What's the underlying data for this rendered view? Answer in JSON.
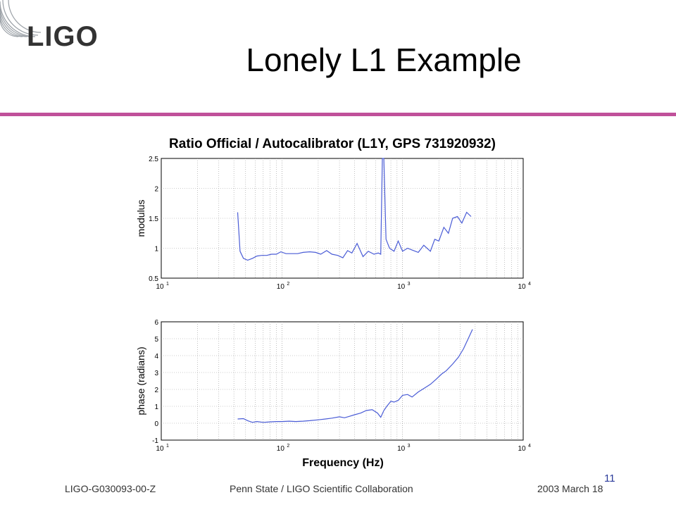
{
  "logo": {
    "text": "LIGO"
  },
  "slide": {
    "title": "Lonely L1 Example",
    "page_number": "11"
  },
  "footer": {
    "left": "LIGO-G030093-00-Z",
    "center": "Penn State / LIGO Scientific Collaboration",
    "right": "2003 March 18"
  },
  "colors": {
    "accent_line": "#c0509a",
    "series": "#4a5cd6",
    "page_number": "#2a3a9a"
  },
  "chart_data": [
    {
      "type": "line",
      "title": "Ratio Official / Autocalibrator (L1Y, GPS 731920932)",
      "xlabel": "",
      "ylabel": "modulus",
      "xscale": "log",
      "xlim": [
        10,
        10000
      ],
      "ylim": [
        0.5,
        2.5
      ],
      "xticks": [
        "10",
        "10",
        "10",
        "10"
      ],
      "xtick_exps": [
        "1",
        "2",
        "3",
        "4"
      ],
      "yticks": [
        "0.5",
        "1",
        "1.5",
        "2",
        "2.5"
      ],
      "grid": true,
      "series": [
        {
          "x": [
            43,
            45,
            48,
            52,
            57,
            62,
            68,
            75,
            82,
            90,
            98,
            108,
            120,
            135,
            150,
            170,
            190,
            210,
            235,
            260,
            290,
            320,
            350,
            380,
            420,
            470,
            520,
            580,
            630,
            660,
            680,
            700,
            730,
            780,
            850,
            920,
            1000,
            1100,
            1200,
            1350,
            1500,
            1700,
            1850,
            2000,
            2200,
            2400,
            2600,
            2850,
            3100,
            3400,
            3700
          ],
          "y": [
            1.6,
            0.95,
            0.83,
            0.8,
            0.83,
            0.87,
            0.88,
            0.88,
            0.9,
            0.9,
            0.94,
            0.91,
            0.91,
            0.91,
            0.93,
            0.94,
            0.93,
            0.9,
            0.96,
            0.9,
            0.88,
            0.84,
            0.96,
            0.92,
            1.08,
            0.86,
            0.95,
            0.9,
            0.92,
            0.9,
            2.5,
            2.5,
            1.15,
            1.0,
            0.95,
            1.12,
            0.95,
            1.0,
            0.97,
            0.93,
            1.05,
            0.95,
            1.15,
            1.12,
            1.35,
            1.25,
            1.5,
            1.53,
            1.42,
            1.6,
            1.53
          ]
        }
      ]
    },
    {
      "type": "line",
      "title": "",
      "xlabel": "Frequency (Hz)",
      "ylabel": "phase (radians)",
      "xscale": "log",
      "xlim": [
        10,
        10000
      ],
      "ylim": [
        -1,
        6
      ],
      "xticks": [
        "10",
        "10",
        "10",
        "10"
      ],
      "xtick_exps": [
        "1",
        "2",
        "3",
        "4"
      ],
      "yticks": [
        "-1",
        "0",
        "1",
        "2",
        "3",
        "4",
        "5",
        "6"
      ],
      "grid": true,
      "series": [
        {
          "x": [
            43,
            48,
            52,
            57,
            62,
            70,
            80,
            90,
            100,
            115,
            130,
            150,
            170,
            200,
            230,
            260,
            300,
            330,
            360,
            400,
            450,
            500,
            560,
            620,
            660,
            700,
            740,
            800,
            850,
            920,
            1000,
            1100,
            1200,
            1350,
            1500,
            1700,
            1900,
            2100,
            2300,
            2600,
            2900,
            3200,
            3500,
            3800
          ],
          "y": [
            0.25,
            0.27,
            0.15,
            0.05,
            0.1,
            0.05,
            0.08,
            0.1,
            0.1,
            0.12,
            0.1,
            0.12,
            0.15,
            0.2,
            0.25,
            0.3,
            0.38,
            0.32,
            0.4,
            0.5,
            0.6,
            0.75,
            0.8,
            0.6,
            0.35,
            0.75,
            1.0,
            1.3,
            1.25,
            1.35,
            1.65,
            1.7,
            1.55,
            1.85,
            2.05,
            2.3,
            2.6,
            2.9,
            3.1,
            3.5,
            3.9,
            4.4,
            5.0,
            5.55
          ]
        }
      ]
    }
  ]
}
